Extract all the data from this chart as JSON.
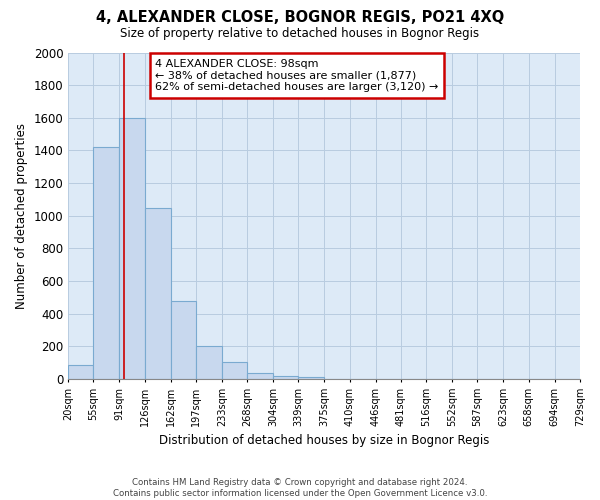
{
  "title": "4, ALEXANDER CLOSE, BOGNOR REGIS, PO21 4XQ",
  "subtitle": "Size of property relative to detached houses in Bognor Regis",
  "xlabel": "Distribution of detached houses by size in Bognor Regis",
  "ylabel": "Number of detached properties",
  "bar_edges": [
    20,
    55,
    91,
    126,
    162,
    197,
    233,
    268,
    304,
    339,
    375,
    410,
    446,
    481,
    516,
    552,
    587,
    623,
    658,
    694,
    729
  ],
  "bar_heights": [
    85,
    1420,
    1600,
    1050,
    480,
    200,
    105,
    35,
    20,
    15,
    0,
    0,
    0,
    0,
    0,
    0,
    0,
    0,
    0,
    0
  ],
  "bar_color": "#c8d8ee",
  "bar_edge_color": "#7aaad0",
  "property_line_x": 98,
  "property_line_color": "#cc0000",
  "ylim": [
    0,
    2000
  ],
  "yticks": [
    0,
    200,
    400,
    600,
    800,
    1000,
    1200,
    1400,
    1600,
    1800,
    2000
  ],
  "annotation_title": "4 ALEXANDER CLOSE: 98sqm",
  "annotation_line1": "← 38% of detached houses are smaller (1,877)",
  "annotation_line2": "62% of semi-detached houses are larger (3,120) →",
  "footer_line1": "Contains HM Land Registry data © Crown copyright and database right 2024.",
  "footer_line2": "Contains public sector information licensed under the Open Government Licence v3.0.",
  "plot_bg_color": "#ddeaf7",
  "fig_bg_color": "#ffffff",
  "grid_color": "#b8cce0"
}
